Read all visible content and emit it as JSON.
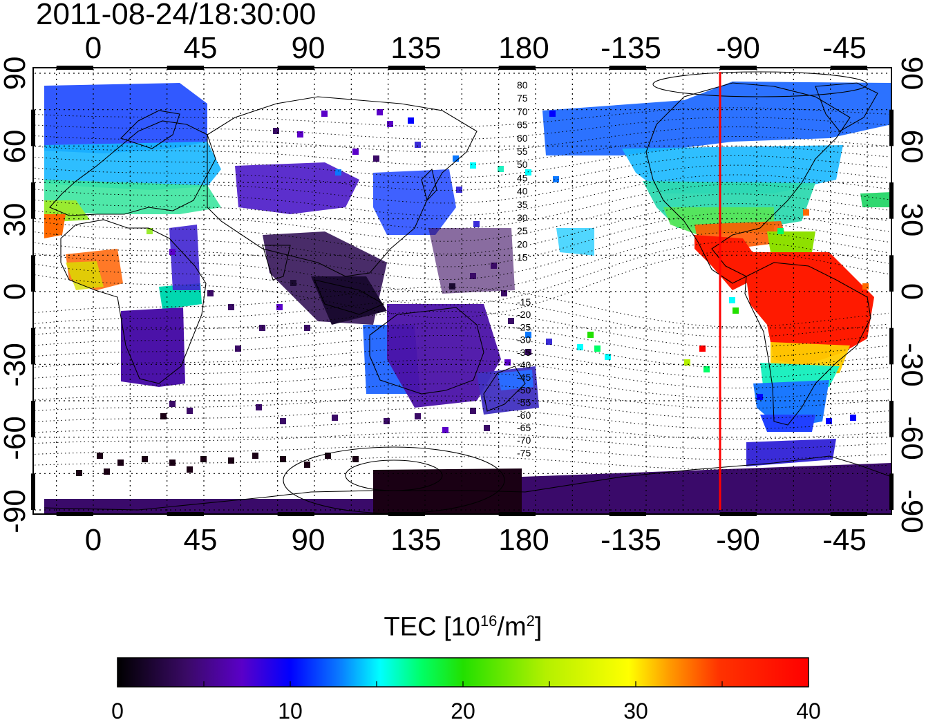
{
  "title": "2011-08-24/18:30:00",
  "map": {
    "top_axis_labels": [
      "0",
      "45",
      "90",
      "135",
      "180",
      "-135",
      "-90",
      "-45"
    ],
    "bottom_axis_labels": [
      "0",
      "45",
      "90",
      "135",
      "180",
      "-135",
      "-90",
      "-45"
    ],
    "left_axis_labels": [
      "90",
      "60",
      "30",
      "0",
      "-30",
      "-60",
      "-90"
    ],
    "right_axis_labels": [
      "90",
      "60",
      "30",
      "0",
      "-30",
      "-60",
      "-90"
    ],
    "contour_labels_north": [
      "80",
      "75",
      "70",
      "65",
      "60",
      "55",
      "50",
      "45",
      "40",
      "35",
      "30",
      "25",
      "20",
      "15"
    ],
    "contour_labels_south": [
      "-15",
      "-20",
      "-25",
      "-30",
      "-35",
      "-40",
      "-45",
      "-50",
      "-55",
      "-60",
      "-65",
      "-70",
      "-75"
    ],
    "grid": "dotted, every 15 degrees",
    "marker_line": {
      "longitude": -95,
      "color": "#ff0000"
    }
  },
  "colorbar": {
    "label_text": "TEC  [10",
    "label_sup": "16",
    "label_mid": "/m",
    "label_sup2": "2",
    "label_end": "]",
    "min": 0,
    "max": 40,
    "tick_labels": [
      "0",
      "10",
      "20",
      "30",
      "40"
    ],
    "colors": [
      "#000000",
      "#3a0a66",
      "#5a00c8",
      "#0000ff",
      "#0a78ff",
      "#00ffff",
      "#00ff66",
      "#22e000",
      "#b4f000",
      "#ffff00",
      "#ff9900",
      "#ff3300",
      "#ff0000"
    ]
  }
}
